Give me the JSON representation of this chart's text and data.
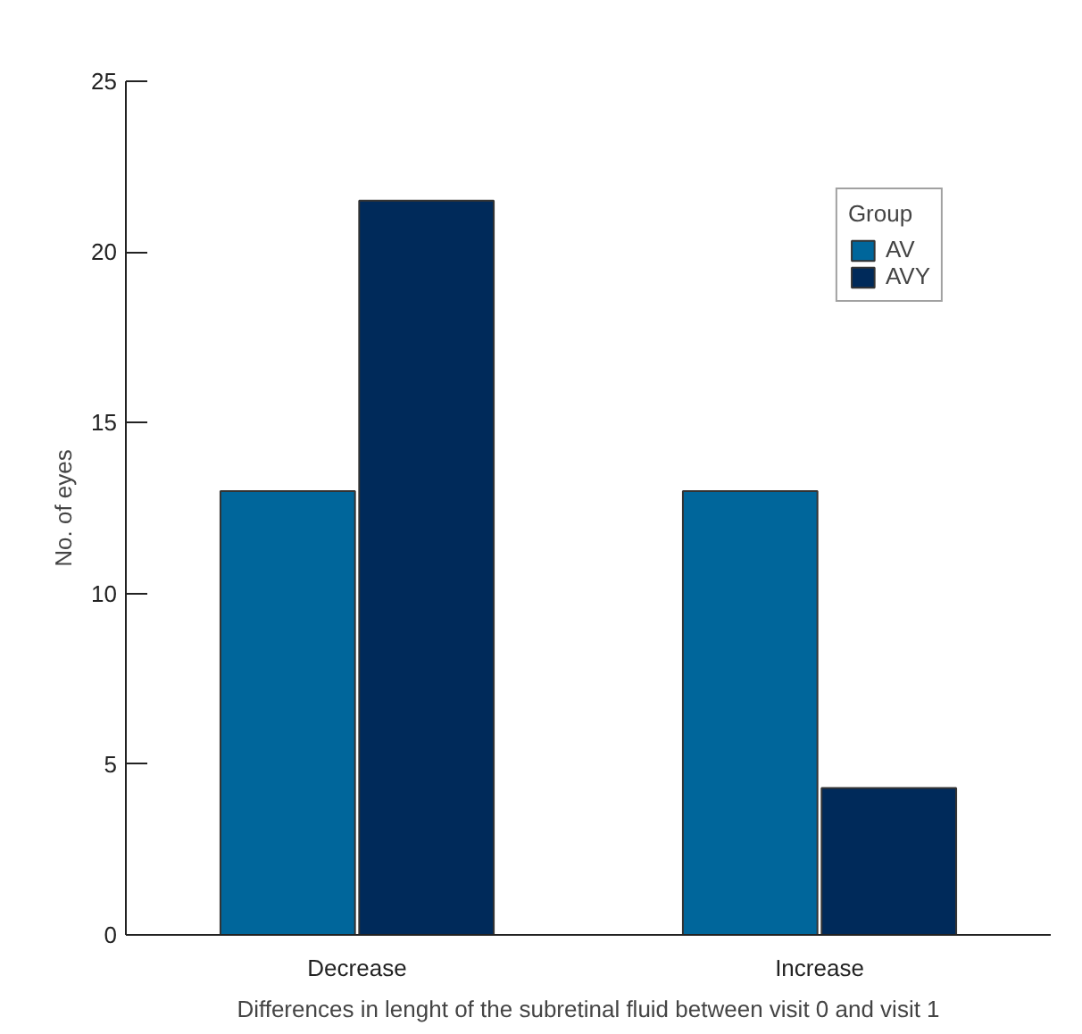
{
  "chart_data": {
    "type": "bar",
    "xlabel": "Differences in lenght of the subretinal fluid between visit 0 and visit 1",
    "ylabel": "No. of eyes",
    "categories": [
      "Decrease",
      "Increase"
    ],
    "series": [
      {
        "name": "AV",
        "color": "#00669b",
        "values": [
          13,
          13
        ]
      },
      {
        "name": "AVY",
        "color": "#002a5a",
        "values": [
          21.5,
          4.3
        ]
      }
    ],
    "ylim": [
      0,
      25
    ],
    "yticks": [
      0,
      5,
      10,
      15,
      20,
      25
    ],
    "grid": false,
    "legend": "top right",
    "legend_title": "Group"
  }
}
